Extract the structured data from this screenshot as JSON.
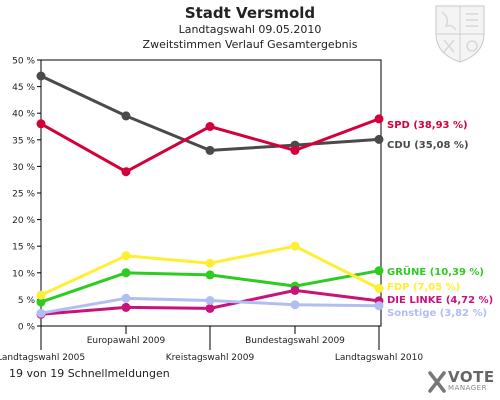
{
  "header": {
    "title": "Stadt Versmold",
    "subtitle1": "Landtagswahl 09.05.2010",
    "subtitle2": "Zweitstimmen Verlauf Gesamtergebnis"
  },
  "footer": {
    "status": "19 von 19 Schnellmeldungen"
  },
  "logo": {
    "word1": "VOTE",
    "word2": "MANAGER"
  },
  "chart_data": {
    "type": "line",
    "title": "Zweitstimmen Verlauf Gesamtergebnis",
    "categories": [
      "Landtagswahl 2005",
      "Europawahl 2009",
      "Kreistagswahl 2009",
      "Bundestagswahl 2009",
      "Landtagswahl 2010"
    ],
    "ylim": [
      0,
      50
    ],
    "yticks": [
      "0 %",
      "5 %",
      "10 %",
      "15 %",
      "20 %",
      "25 %",
      "30 %",
      "35 %",
      "40 %",
      "45 %",
      "50 %"
    ],
    "grid": false,
    "series": [
      {
        "name": "CDU",
        "label": "CDU (35,08 %)",
        "color": "#4a4a4a",
        "values": [
          47.0,
          39.5,
          33.0,
          34.0,
          35.08
        ]
      },
      {
        "name": "SPD",
        "label": "SPD (38,93 %)",
        "color": "#d4003a",
        "values": [
          38.0,
          29.0,
          37.5,
          33.0,
          38.93
        ]
      },
      {
        "name": "GRÜNE",
        "label": "GRÜNE (10,39 %)",
        "color": "#2ecc20",
        "values": [
          4.5,
          10.0,
          9.6,
          7.5,
          10.39
        ]
      },
      {
        "name": "FDP",
        "label": "FDP (7,05 %)",
        "color": "#ffee33",
        "values": [
          5.8,
          13.2,
          11.8,
          15.0,
          7.05
        ]
      },
      {
        "name": "DIE LINKE",
        "label": "DIE LINKE (4,72 %)",
        "color": "#c8147a",
        "values": [
          2.2,
          3.5,
          3.3,
          6.7,
          4.72
        ]
      },
      {
        "name": "Sonstige",
        "label": "Sonstige (3,82 %)",
        "color": "#b0bff0",
        "values": [
          2.4,
          5.2,
          4.8,
          4.0,
          3.82
        ]
      }
    ]
  }
}
